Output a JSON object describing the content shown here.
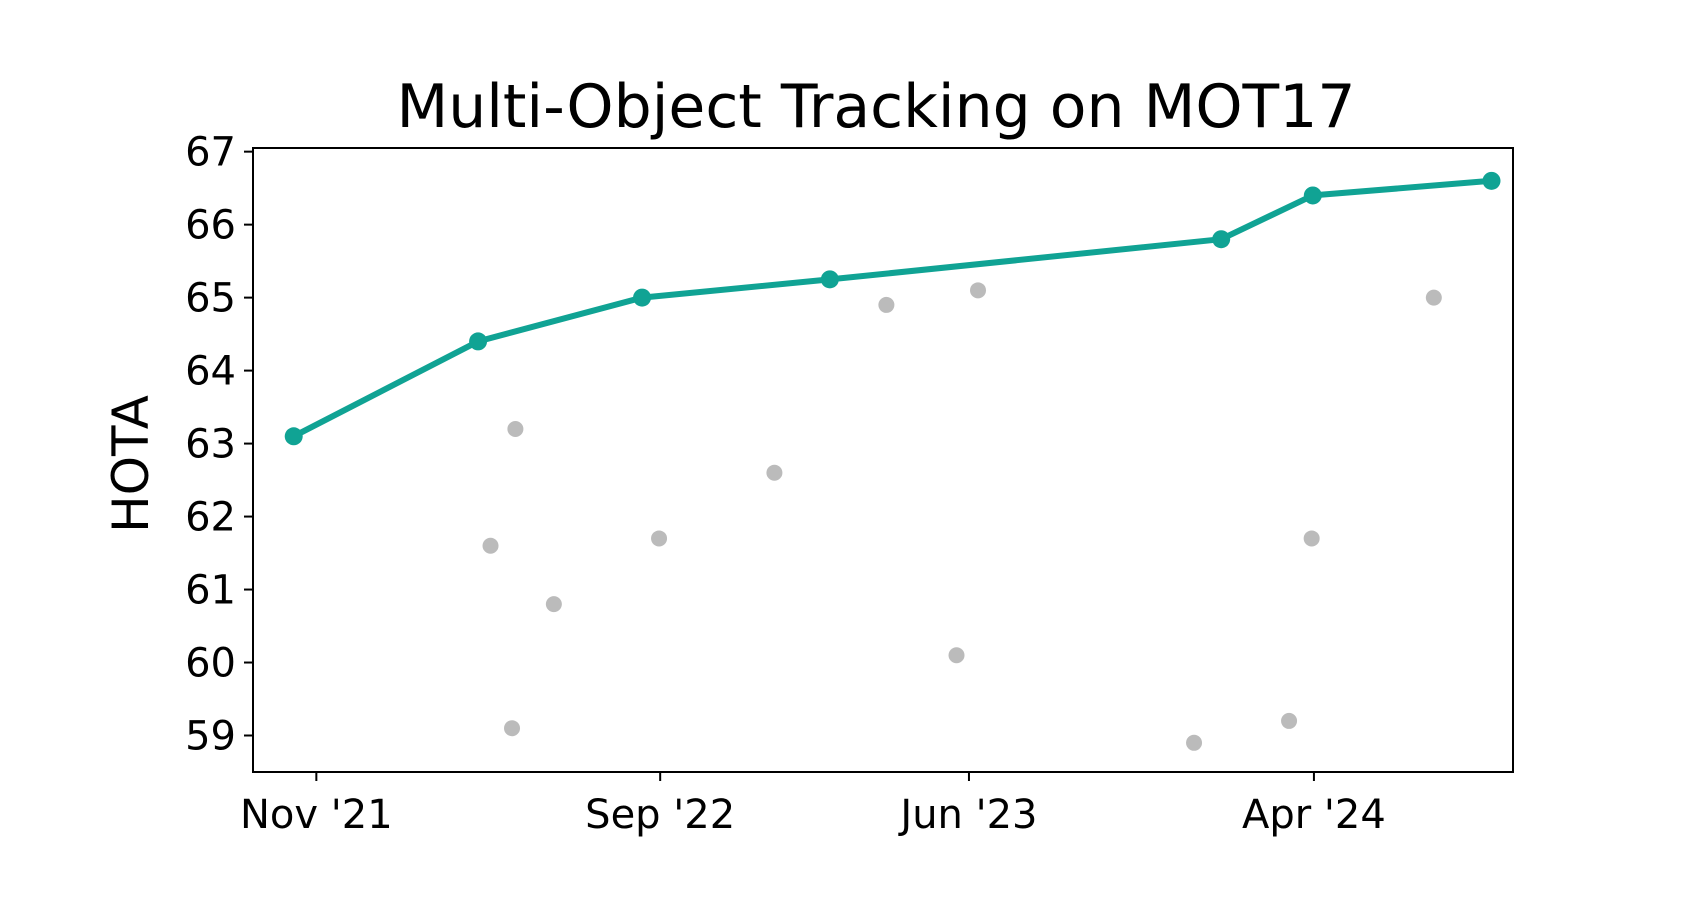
{
  "chart_data": {
    "type": "scatter",
    "title": "Multi-Object Tracking on MOT17",
    "xlabel": "",
    "ylabel": "HOTA",
    "x_axis_type": "date",
    "xlim": [
      "2021-09-06",
      "2024-09-24"
    ],
    "ylim": [
      58.5,
      67.05
    ],
    "x_ticks": [
      {
        "date": "2021-11-01",
        "label": "Nov '21"
      },
      {
        "date": "2022-09-01",
        "label": "Sep '22"
      },
      {
        "date": "2023-06-01",
        "label": "Jun '23"
      },
      {
        "date": "2024-04-01",
        "label": "Apr '24"
      }
    ],
    "y_ticks": [
      59,
      60,
      61,
      62,
      63,
      64,
      65,
      66,
      67
    ],
    "grid": false,
    "legend": "none",
    "series": [
      {
        "role": "state-of-the-art",
        "style": "line-markers",
        "color": "#10a394",
        "points": [
          {
            "x": "2021-10-12",
            "y": 63.1
          },
          {
            "x": "2022-03-24",
            "y": 64.4
          },
          {
            "x": "2022-08-16",
            "y": 65.0
          },
          {
            "x": "2023-01-29",
            "y": 65.25
          },
          {
            "x": "2024-01-10",
            "y": 65.8
          },
          {
            "x": "2024-03-31",
            "y": 66.4
          },
          {
            "x": "2024-09-05",
            "y": 66.6
          }
        ]
      },
      {
        "role": "other-methods",
        "style": "markers",
        "color": "#bbbbbb",
        "points": [
          {
            "x": "2022-04-04",
            "y": 61.6
          },
          {
            "x": "2022-04-23",
            "y": 59.1
          },
          {
            "x": "2022-04-26",
            "y": 63.2
          },
          {
            "x": "2022-05-30",
            "y": 60.8
          },
          {
            "x": "2022-08-31",
            "y": 61.7
          },
          {
            "x": "2022-12-11",
            "y": 62.6
          },
          {
            "x": "2023-03-20",
            "y": 64.9
          },
          {
            "x": "2023-05-21",
            "y": 60.1
          },
          {
            "x": "2023-06-09",
            "y": 65.1
          },
          {
            "x": "2023-12-17",
            "y": 58.9
          },
          {
            "x": "2024-03-10",
            "y": 59.2
          },
          {
            "x": "2024-03-30",
            "y": 61.7
          },
          {
            "x": "2024-07-16",
            "y": 65.0
          }
        ]
      }
    ]
  }
}
